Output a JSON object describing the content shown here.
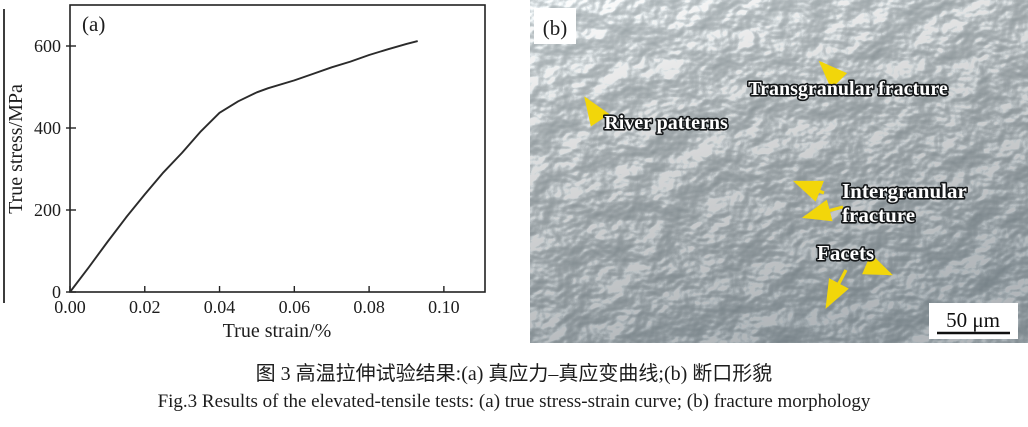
{
  "figure": {
    "panel_a_label": "(a)",
    "panel_b_label": "(b)"
  },
  "chart_data": {
    "type": "line",
    "title": "",
    "xlabel": "True strain/%",
    "ylabel": "True stress/MPa",
    "xlim": [
      0,
      0.111
    ],
    "ylim": [
      0,
      700
    ],
    "xticks": [
      0,
      0.02,
      0.04,
      0.06,
      0.08,
      0.1
    ],
    "xtick_labels": [
      "0.00",
      "0.02",
      "0.04",
      "0.06",
      "0.08",
      "0.10"
    ],
    "yticks": [
      0,
      200,
      400,
      600
    ],
    "ytick_labels": [
      "0",
      "200",
      "400",
      "600"
    ],
    "grid": false,
    "legend": "none",
    "line_color": "#2b2b2b",
    "series": [
      {
        "name": "true stress-strain curve",
        "x": [
          0,
          0.005,
          0.01,
          0.015,
          0.02,
          0.025,
          0.03,
          0.035,
          0.04,
          0.045,
          0.05,
          0.053,
          0.06,
          0.065,
          0.07,
          0.075,
          0.08,
          0.085,
          0.09,
          0.093
        ],
        "y": [
          0,
          60,
          122,
          182,
          238,
          292,
          340,
          392,
          437,
          465,
          487,
          497,
          516,
          532,
          548,
          562,
          578,
          592,
          605,
          612
        ]
      }
    ]
  },
  "sem": {
    "annotations": [
      {
        "id": "transgranular",
        "text": "Transgranular fracture"
      },
      {
        "id": "river",
        "text": "River patterns"
      },
      {
        "id": "intergranular_line1",
        "text": "Intergranular"
      },
      {
        "id": "intergranular_line2",
        "text": "fracture"
      },
      {
        "id": "facets",
        "text": "Facets"
      }
    ],
    "scale_bar_label": "50 μm",
    "arrow_color": "#f2d60a",
    "base_color": "#6e7f85",
    "highlight_color": "#e8eef0",
    "shadow_color": "#3a484e"
  },
  "caption": {
    "zh": "图 3 高温拉伸试验结果:(a) 真应力–真应变曲线;(b) 断口形貌",
    "en": "Fig.3  Results of the elevated-tensile tests: (a) true stress-strain curve; (b) fracture morphology"
  }
}
